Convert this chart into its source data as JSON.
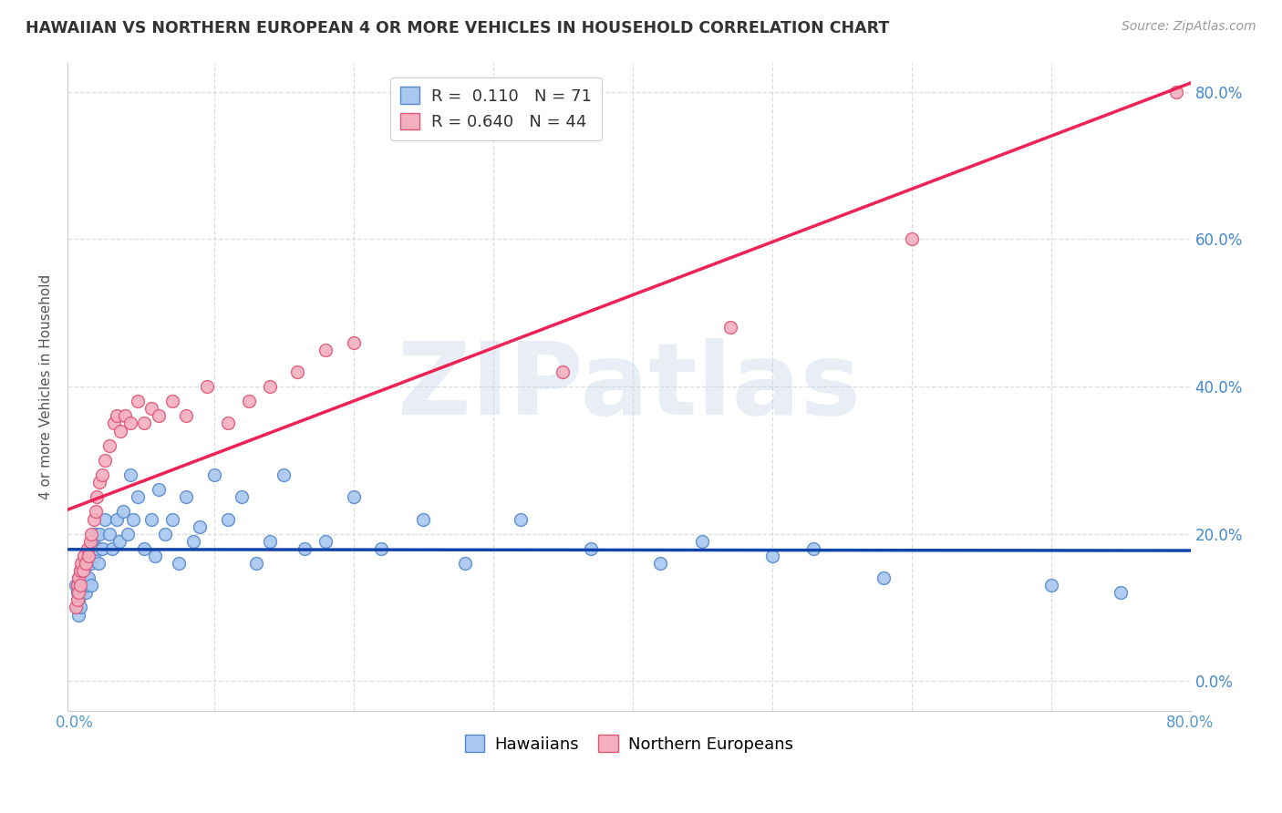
{
  "title": "HAWAIIAN VS NORTHERN EUROPEAN 4 OR MORE VEHICLES IN HOUSEHOLD CORRELATION CHART",
  "source": "Source: ZipAtlas.com",
  "ylabel": "4 or more Vehicles in Household",
  "ytick_labels": [
    "0.0%",
    "20.0%",
    "40.0%",
    "60.0%",
    "80.0%"
  ],
  "ytick_values": [
    0.0,
    0.2,
    0.4,
    0.6,
    0.8
  ],
  "xlim": [
    -0.005,
    0.8
  ],
  "ylim": [
    -0.04,
    0.84
  ],
  "hawaiian_color": "#A8C8F0",
  "northern_european_color": "#F4B0C0",
  "hawaiian_edge_color": "#5588CC",
  "northern_european_edge_color": "#E05575",
  "trend_hawaiian_color": "#1144AA",
  "trend_northern_european_color": "#EE2255",
  "watermark": "ZIPatlas",
  "legend_R_hawaiian": "R =  0.110",
  "legend_N_hawaiian": "N = 71",
  "legend_R_northern": "R = 0.640",
  "legend_N_northern": "N = 44",
  "hawaiians_points_x": [
    0.001,
    0.002,
    0.002,
    0.003,
    0.003,
    0.003,
    0.004,
    0.004,
    0.004,
    0.005,
    0.005,
    0.006,
    0.006,
    0.007,
    0.008,
    0.008,
    0.009,
    0.009,
    0.01,
    0.01,
    0.011,
    0.012,
    0.012,
    0.013,
    0.014,
    0.015,
    0.016,
    0.017,
    0.018,
    0.02,
    0.022,
    0.025,
    0.027,
    0.03,
    0.032,
    0.035,
    0.038,
    0.04,
    0.042,
    0.045,
    0.05,
    0.055,
    0.058,
    0.06,
    0.065,
    0.07,
    0.075,
    0.08,
    0.085,
    0.09,
    0.1,
    0.11,
    0.12,
    0.13,
    0.14,
    0.15,
    0.165,
    0.18,
    0.2,
    0.22,
    0.25,
    0.28,
    0.32,
    0.37,
    0.42,
    0.45,
    0.5,
    0.53,
    0.58,
    0.7,
    0.75
  ],
  "hawaiians_points_y": [
    0.13,
    0.1,
    0.12,
    0.11,
    0.14,
    0.09,
    0.15,
    0.13,
    0.1,
    0.14,
    0.12,
    0.16,
    0.13,
    0.15,
    0.14,
    0.12,
    0.17,
    0.13,
    0.16,
    0.14,
    0.18,
    0.16,
    0.13,
    0.19,
    0.17,
    0.2,
    0.18,
    0.16,
    0.2,
    0.18,
    0.22,
    0.2,
    0.18,
    0.22,
    0.19,
    0.23,
    0.2,
    0.28,
    0.22,
    0.25,
    0.18,
    0.22,
    0.17,
    0.26,
    0.2,
    0.22,
    0.16,
    0.25,
    0.19,
    0.21,
    0.28,
    0.22,
    0.25,
    0.16,
    0.19,
    0.28,
    0.18,
    0.19,
    0.25,
    0.18,
    0.22,
    0.16,
    0.22,
    0.18,
    0.16,
    0.19,
    0.17,
    0.18,
    0.14,
    0.13,
    0.12
  ],
  "northern_european_points_x": [
    0.001,
    0.002,
    0.002,
    0.003,
    0.003,
    0.004,
    0.004,
    0.005,
    0.006,
    0.007,
    0.008,
    0.009,
    0.01,
    0.011,
    0.012,
    0.014,
    0.015,
    0.016,
    0.018,
    0.02,
    0.022,
    0.025,
    0.028,
    0.03,
    0.033,
    0.036,
    0.04,
    0.045,
    0.05,
    0.055,
    0.06,
    0.07,
    0.08,
    0.095,
    0.11,
    0.125,
    0.14,
    0.16,
    0.18,
    0.2,
    0.35,
    0.47,
    0.6,
    0.79
  ],
  "northern_european_points_y": [
    0.1,
    0.13,
    0.11,
    0.14,
    0.12,
    0.15,
    0.13,
    0.16,
    0.15,
    0.17,
    0.16,
    0.18,
    0.17,
    0.19,
    0.2,
    0.22,
    0.23,
    0.25,
    0.27,
    0.28,
    0.3,
    0.32,
    0.35,
    0.36,
    0.34,
    0.36,
    0.35,
    0.38,
    0.35,
    0.37,
    0.36,
    0.38,
    0.36,
    0.4,
    0.35,
    0.38,
    0.4,
    0.42,
    0.45,
    0.46,
    0.42,
    0.48,
    0.6,
    0.8
  ],
  "marker_size": 100,
  "grid_color": "#DDDDDD",
  "background_color": "#FFFFFF",
  "title_color": "#333333",
  "axis_label_color": "#555555",
  "tick_color": "#5599CC",
  "watermark_color": "#C0D0E8",
  "watermark_alpha": 0.35,
  "watermark_fontsize": 80,
  "right_ytick_color": "#4488CC"
}
